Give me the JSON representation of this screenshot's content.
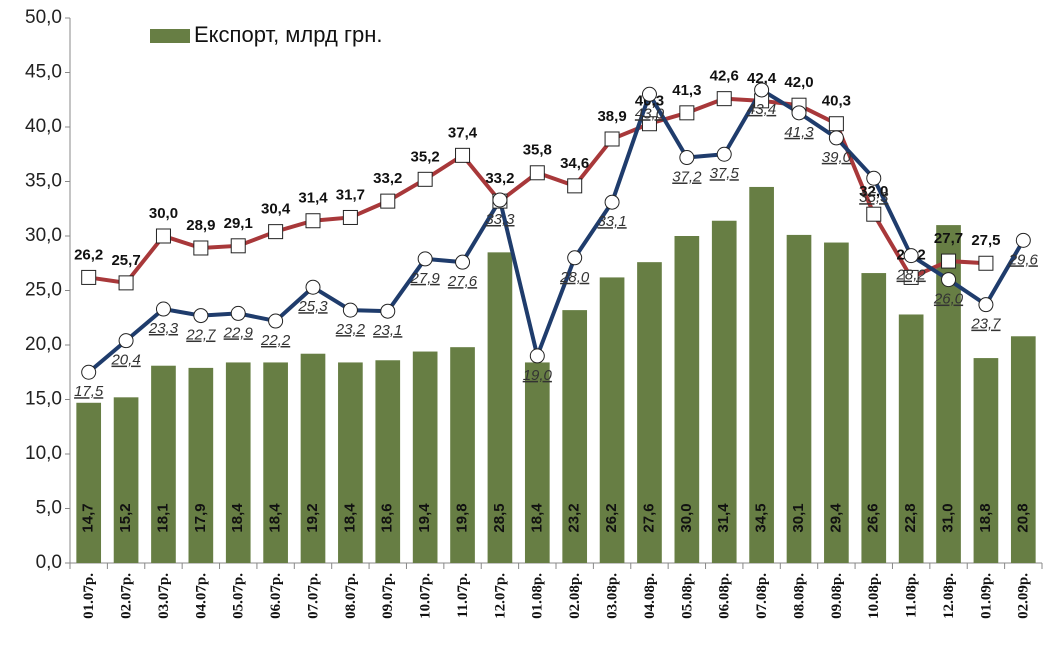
{
  "chart_data": {
    "type": "bar_line",
    "categories": [
      "01.07р.",
      "02.07р.",
      "03.07р.",
      "04.07р.",
      "05.07р.",
      "06.07р.",
      "07.07р.",
      "08.07р.",
      "09.07р.",
      "10.07р.",
      "11.07р.",
      "12.07р.",
      "01.08р.",
      "02.08р.",
      "03.08р.",
      "04.08р.",
      "05.08р.",
      "06.08р.",
      "07.08р.",
      "08.08р.",
      "09.08р.",
      "10.08р.",
      "11.08р.",
      "12.08р.",
      "01.09р.",
      "02.09р."
    ],
    "series": [
      {
        "name": "Експорт, млрд грн.",
        "type": "bar",
        "color": "#677e44",
        "values": [
          14.7,
          15.2,
          18.1,
          17.9,
          18.4,
          18.4,
          19.2,
          18.4,
          18.6,
          19.4,
          19.8,
          28.5,
          18.4,
          23.2,
          26.2,
          27.6,
          30.0,
          31.4,
          34.5,
          30.1,
          29.4,
          26.6,
          22.8,
          31.0,
          18.8,
          20.8
        ],
        "value_labels": [
          "14,7",
          "15,2",
          "18,1",
          "17,9",
          "18,4",
          "18,4",
          "19,2",
          "18,4",
          "18,6",
          "19,4",
          "19,8",
          "28,5",
          "18,4",
          "23,2",
          "26,2",
          "27,6",
          "30,0",
          "31,4",
          "34,5",
          "30,1",
          "29,4",
          "26,6",
          "22,8",
          "31,0",
          "18,8",
          "20,8"
        ]
      },
      {
        "type": "line",
        "marker": "square",
        "color": "#a8383a",
        "values": [
          26.2,
          25.7,
          30.0,
          28.9,
          29.1,
          30.4,
          31.4,
          31.7,
          33.2,
          35.2,
          37.4,
          33.2,
          35.8,
          34.6,
          38.9,
          40.3,
          41.3,
          42.6,
          42.4,
          42.0,
          40.3,
          32.0,
          26.2,
          27.7,
          27.5,
          null
        ],
        "value_labels": [
          "26,2",
          "25,7",
          "30,0",
          "28,9",
          "29,1",
          "30,4",
          "31,4",
          "31,7",
          "33,2",
          "35,2",
          "37,4",
          "33,2",
          "35,8",
          "34,6",
          "38,9",
          "40,3",
          "41,3",
          "42,6",
          "42,4",
          "42,0",
          "40,3",
          "32,0",
          "26,2",
          "27,7",
          "27,5",
          null
        ]
      },
      {
        "type": "line",
        "marker": "circle",
        "color": "#1f3c6c",
        "values": [
          17.5,
          20.4,
          23.3,
          22.7,
          22.9,
          22.2,
          25.3,
          23.2,
          23.1,
          27.9,
          27.6,
          33.3,
          19.0,
          28.0,
          33.1,
          43.0,
          37.2,
          37.5,
          43.4,
          41.3,
          39.0,
          35.3,
          28.2,
          26.0,
          23.7,
          29.6
        ],
        "value_labels": [
          "17,5",
          "20,4",
          "23,3",
          "22,7",
          "22,9",
          "22,2",
          "25,3",
          "23,2",
          "23,1",
          "27,9",
          "27,6",
          "33,3",
          "19,0",
          "28,0",
          "33,1",
          "43,0",
          "37,2",
          "37,5",
          "43,4",
          "41,3",
          "39,0",
          "35,3",
          "28,2",
          "26,0",
          "23,7",
          "29,6"
        ]
      }
    ],
    "ylim": [
      0,
      50
    ],
    "yticks": [
      {
        "value": 0,
        "label": "0,0"
      },
      {
        "value": 5,
        "label": "5,0"
      },
      {
        "value": 10,
        "label": "10,0"
      },
      {
        "value": 15,
        "label": "15,0"
      },
      {
        "value": 20,
        "label": "20,0"
      },
      {
        "value": 25,
        "label": "25,0"
      },
      {
        "value": 30,
        "label": "30,0"
      },
      {
        "value": 35,
        "label": "35,0"
      },
      {
        "value": 40,
        "label": "40,0"
      },
      {
        "value": 45,
        "label": "45,0"
      },
      {
        "value": 50,
        "label": "50,0"
      }
    ],
    "legend": "top-left"
  }
}
